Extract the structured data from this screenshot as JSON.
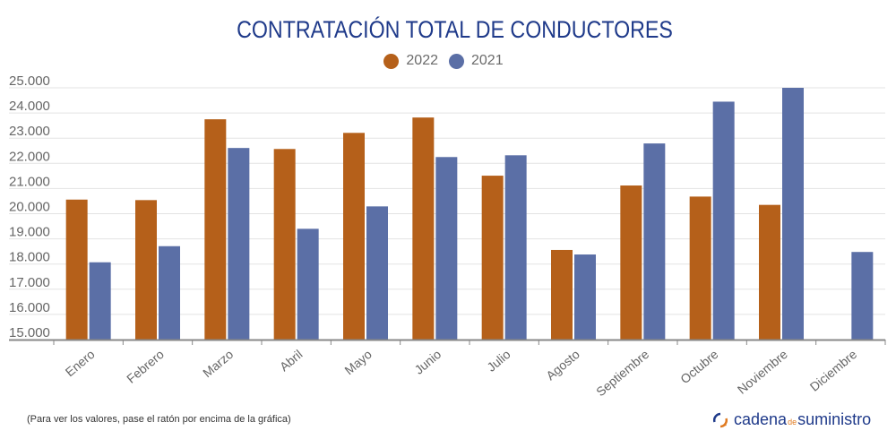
{
  "chart_data": {
    "type": "bar",
    "title": "CONTRATACIÓN TOTAL DE CONDUCTORES",
    "xlabel": "",
    "ylabel": "",
    "ylim": [
      15000,
      25000
    ],
    "yticks": [
      15000,
      16000,
      17000,
      18000,
      19000,
      20000,
      21000,
      22000,
      23000,
      24000,
      25000
    ],
    "ytick_labels": [
      "15.000",
      "16.000",
      "17.000",
      "18.000",
      "19.000",
      "20.000",
      "21.000",
      "22.000",
      "23.000",
      "24.000",
      "25.000"
    ],
    "grid": true,
    "legend_position": "top-center",
    "categories": [
      "Enero",
      "Febrero",
      "Marzo",
      "Abril",
      "Mayo",
      "Junio",
      "Julio",
      "Agosto",
      "Septiembre",
      "Octubre",
      "Noviembre",
      "Diciembre"
    ],
    "series": [
      {
        "name": "2022",
        "color": "#b5601a",
        "values": [
          20560,
          20540,
          23750,
          22570,
          23210,
          23820,
          21510,
          18560,
          21120,
          20680,
          20350,
          null
        ]
      },
      {
        "name": "2021",
        "color": "#5b6fa6",
        "values": [
          18070,
          18710,
          22610,
          19400,
          20290,
          22250,
          22320,
          18380,
          22790,
          24450,
          25000,
          18480
        ]
      }
    ]
  },
  "legend": [
    {
      "label": "2022",
      "color": "#b5601a"
    },
    {
      "label": "2021",
      "color": "#5b6fa6"
    }
  ],
  "footer": {
    "note": "(Para ver los valores, pase el ratón por encima de la gráfica)",
    "brand_part1": "cadena",
    "brand_part2": "de",
    "brand_part3": "suministro"
  }
}
